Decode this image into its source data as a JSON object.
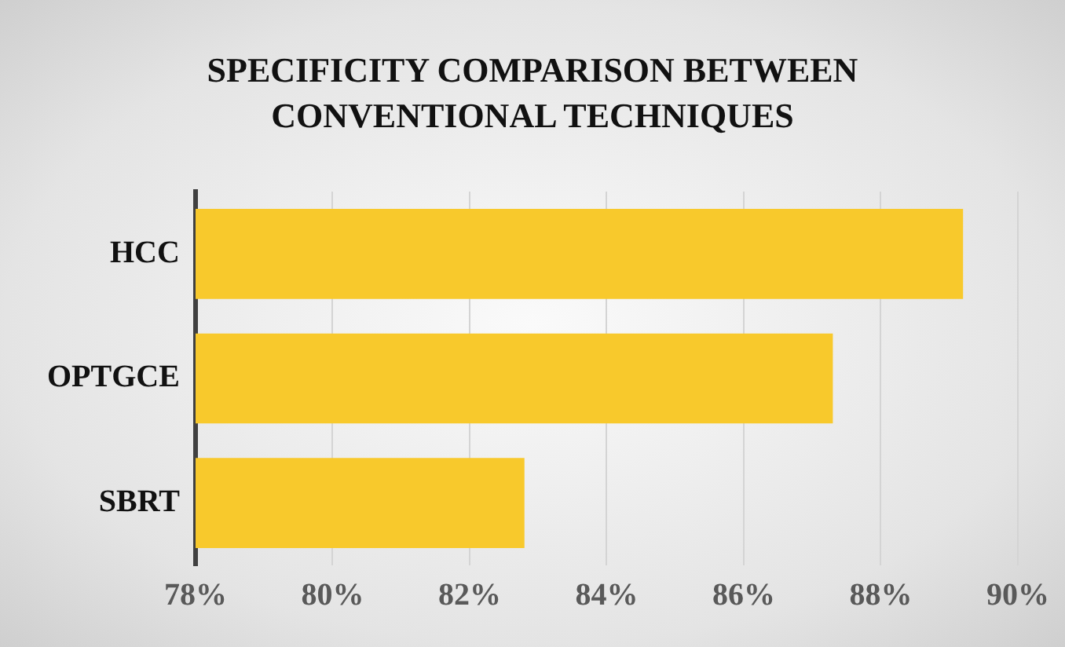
{
  "chart_data": {
    "type": "bar",
    "orientation": "horizontal",
    "title": "SPECIFICITY COMPARISON BETWEEN CONVENTIONAL TECHNIQUES",
    "categories": [
      "HCC",
      "OPTGCE",
      "SBRT"
    ],
    "values": [
      89.2,
      87.3,
      82.8
    ],
    "color": "#f8c92c",
    "xlim": [
      78,
      90
    ],
    "xticks": [
      {
        "value": 78,
        "label": "78%"
      },
      {
        "value": 80,
        "label": "80%"
      },
      {
        "value": 82,
        "label": "82%"
      },
      {
        "value": 84,
        "label": "84%"
      },
      {
        "value": 86,
        "label": "86%"
      },
      {
        "value": 88,
        "label": "88%"
      },
      {
        "value": 90,
        "label": "90%"
      }
    ],
    "grid": "x",
    "legend": false
  }
}
